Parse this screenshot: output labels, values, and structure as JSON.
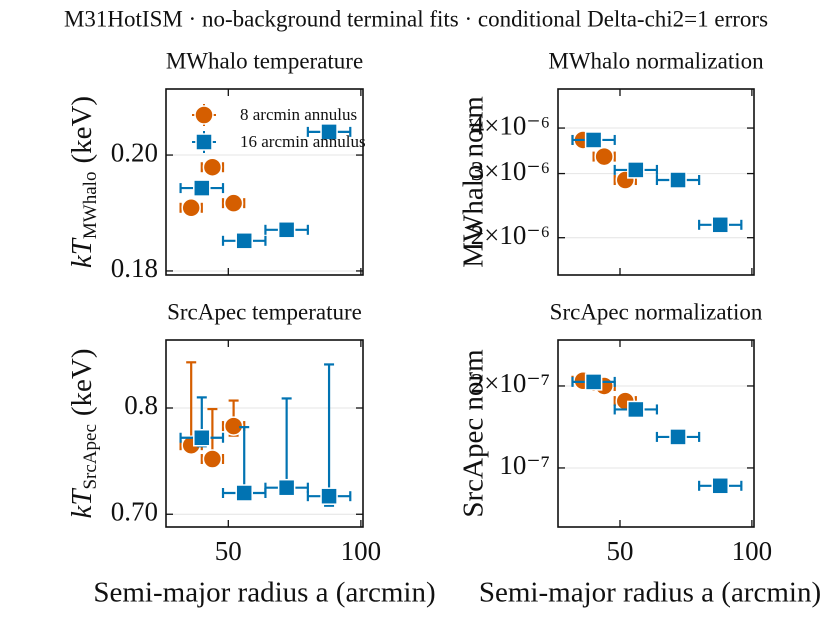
{
  "title": "M31HotISM · no-background terminal fits · conditional Delta-chi2=1 errors",
  "chart_data": [
    {
      "type": "scatter",
      "title": "MWhalo temperature",
      "ylabel": {
        "symbol": "kT",
        "subscript": "MWhalo",
        "unit": "(keV)"
      },
      "xlim": [
        26.5,
        100.8
      ],
      "xticks": [
        50,
        100
      ],
      "show_xticklabels": false,
      "ylim": [
        0.1793,
        0.2114
      ],
      "yticks": [
        0.18,
        {
          "value": 0.2,
          "label": "0.20"
        }
      ],
      "log_y": false,
      "grid": true,
      "legend": "upper left",
      "series": [
        {
          "name": "8 arcmin annulus",
          "color": "#d55e00",
          "marker": "circle",
          "x": [
            36,
            44,
            52
          ],
          "values": [
            0.1909,
            0.1979,
            0.1917
          ],
          "xerr": [
            4,
            4,
            4
          ],
          "yerr_minus": [
            0.0009,
            0.0009,
            0.0009
          ],
          "yerr_plus": [
            0.0009,
            0.0009,
            0.0009
          ]
        },
        {
          "name": "16 arcmin annulus",
          "color": "#0173b2",
          "marker": "square",
          "x": [
            40,
            56,
            72,
            88
          ],
          "values": [
            0.1943,
            0.1852,
            0.1871,
            0.204
          ],
          "xerr": [
            8,
            8,
            8,
            8
          ],
          "yerr_minus": [
            0.0008,
            0.0008,
            0.0008,
            0.0008
          ],
          "yerr_plus": [
            0.0008,
            0.0008,
            0.0008,
            0.0008
          ]
        }
      ]
    },
    {
      "type": "scatter",
      "title": "MWhalo normalization",
      "ylabel": "MWhalo norm",
      "xlim": [
        26.5,
        100.8
      ],
      "xticks": [
        50,
        100
      ],
      "show_xticklabels": false,
      "ylim": [
        1.58e-06,
        5.12e-06
      ],
      "yticks": [
        {
          "value": 2e-06,
          "label": "2×10⁻⁶"
        },
        {
          "value": 3e-06,
          "label": "3×10⁻⁶"
        },
        {
          "value": 4e-06,
          "label": "4×10⁻⁶"
        }
      ],
      "log_y": true,
      "grid": true,
      "series": [
        {
          "color": "#d55e00",
          "marker": "circle",
          "x": [
            36,
            44,
            52
          ],
          "values": [
            3.71e-06,
            3.34e-06,
            2.88e-06
          ],
          "xerr": [
            4,
            4,
            4
          ],
          "yerr_minus": [
            5e-08,
            5e-08,
            5e-08
          ],
          "yerr_plus": [
            5e-08,
            5e-08,
            5e-08
          ]
        },
        {
          "color": "#0173b2",
          "marker": "square",
          "x": [
            40,
            56,
            72,
            88
          ],
          "values": [
            3.71e-06,
            3.07e-06,
            2.88e-06,
            2.17e-06
          ],
          "xerr": [
            8,
            8,
            8,
            8
          ],
          "yerr_minus": [
            5e-08,
            5e-08,
            5e-08,
            5e-08
          ],
          "yerr_plus": [
            5e-08,
            5e-08,
            5e-08,
            5e-08
          ]
        }
      ]
    },
    {
      "type": "scatter",
      "title": "SrcApec temperature",
      "ylabel": {
        "symbol": "kT",
        "subscript": "SrcApec",
        "unit": "(keV)"
      },
      "xlabel": "Semi-major radius a (arcmin)",
      "xlim": [
        26.5,
        100.8
      ],
      "xticks": [
        50,
        100
      ],
      "show_xticklabels": true,
      "ylim": [
        0.688,
        0.864
      ],
      "yticks": [
        {
          "value": 0.7,
          "label": "0.70"
        },
        0.8
      ],
      "log_y": false,
      "grid": true,
      "series": [
        {
          "color": "#d55e00",
          "marker": "circle",
          "x": [
            36,
            44,
            52
          ],
          "values": [
            0.765,
            0.752,
            0.783
          ],
          "xerr": [
            4,
            4,
            4
          ],
          "yerr_minus": [
            0.006,
            0.004,
            0.009
          ],
          "yerr_plus": [
            0.078,
            0.047,
            0.024
          ]
        },
        {
          "color": "#0173b2",
          "marker": "square",
          "x": [
            40,
            56,
            72,
            88
          ],
          "values": [
            0.772,
            0.72,
            0.725,
            0.717
          ],
          "xerr": [
            8,
            8,
            8,
            8
          ],
          "yerr_minus": [
            0.008,
            0.004,
            0.004,
            0.009
          ],
          "yerr_plus": [
            0.038,
            0.062,
            0.084,
            0.124
          ]
        }
      ]
    },
    {
      "type": "scatter",
      "title": "SrcApec normalization",
      "ylabel": "SrcApec norm",
      "xlabel": "Semi-major radius a (arcmin)",
      "xlim": [
        26.5,
        100.8
      ],
      "xticks": [
        50,
        100
      ],
      "show_xticklabels": true,
      "ylim": [
        6.07e-08,
        2.95e-07
      ],
      "yticks": [
        {
          "value": 1e-07,
          "label": "10⁻⁷"
        },
        {
          "value": 2e-07,
          "label": "2×10⁻⁷"
        }
      ],
      "log_y": true,
      "grid": true,
      "series": [
        {
          "color": "#d55e00",
          "marker": "circle",
          "x": [
            36,
            44,
            52
          ],
          "values": [
            2.09e-07,
            2e-07,
            1.76e-07
          ],
          "xerr": [
            4,
            4,
            4
          ],
          "yerr_minus": [
            5e-09,
            5e-09,
            5e-09
          ],
          "yerr_plus": [
            5e-09,
            5e-09,
            5e-09
          ]
        },
        {
          "color": "#0173b2",
          "marker": "square",
          "x": [
            40,
            56,
            72,
            88
          ],
          "values": [
            2.07e-07,
            1.64e-07,
            1.3e-07,
            8.6e-08
          ],
          "xerr": [
            8,
            8,
            8,
            8
          ],
          "yerr_minus": [
            5e-09,
            5e-09,
            4e-09,
            4e-09
          ],
          "yerr_plus": [
            5e-09,
            5e-09,
            4e-09,
            4e-09
          ]
        }
      ]
    }
  ]
}
